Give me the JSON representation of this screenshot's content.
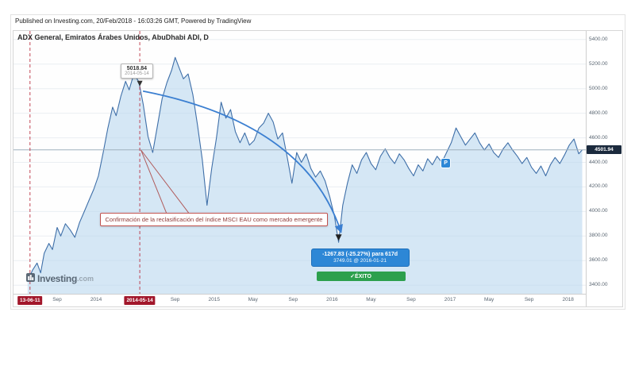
{
  "header": {
    "published": "Published on Investing.com, 20/Feb/2018 - 16:03:26 GMT, Powered by TradingView",
    "instrument": "ADX General, Emiratos Árabes Unidos, AbuDhabi ADI, D"
  },
  "watermark": {
    "name": "Investing",
    "tld": ".com"
  },
  "chart_data": {
    "type": "area",
    "title": "ADX General, Emiratos Árabes Unidos, AbuDhabi ADI, D",
    "xlabel": "",
    "ylabel": "",
    "grid": "horizontal",
    "legend": "none",
    "xlim": [
      2013.3,
      2018.15
    ],
    "ylim": [
      3330,
      5470
    ],
    "line_color": "#3f6fa8",
    "fill_color": "#b9d7ef",
    "y_ticks": [
      3400,
      3600,
      3800,
      4000,
      4200,
      4400,
      4600,
      4800,
      5000,
      5200,
      5400
    ],
    "y_tick_labels": [
      "3400.00",
      "3600.00",
      "3800.00",
      "4000.00",
      "4200.00",
      "4400.00",
      "4600.00",
      "4800.00",
      "5000.00",
      "5200.00",
      "5400.00"
    ],
    "x_ticks": [
      {
        "t": 2013.67,
        "label": "Sep"
      },
      {
        "t": 2014.0,
        "label": "2014"
      },
      {
        "t": 2014.67,
        "label": "Sep"
      },
      {
        "t": 2015.0,
        "label": "2015"
      },
      {
        "t": 2015.33,
        "label": "May"
      },
      {
        "t": 2015.67,
        "label": "Sep"
      },
      {
        "t": 2016.0,
        "label": "2016"
      },
      {
        "t": 2016.33,
        "label": "May"
      },
      {
        "t": 2016.67,
        "label": "Sep"
      },
      {
        "t": 2017.0,
        "label": "2017"
      },
      {
        "t": 2017.33,
        "label": "May"
      },
      {
        "t": 2017.67,
        "label": "Sep"
      },
      {
        "t": 2018.0,
        "label": "2018"
      }
    ],
    "x": [
      2013.42,
      2013.46,
      2013.5,
      2013.53,
      2013.56,
      2013.6,
      2013.63,
      2013.67,
      2013.7,
      2013.74,
      2013.78,
      2013.82,
      2013.86,
      2013.9,
      2013.94,
      2013.98,
      2014.02,
      2014.06,
      2014.1,
      2014.14,
      2014.17,
      2014.21,
      2014.25,
      2014.28,
      2014.32,
      2014.36,
      2014.37,
      2014.4,
      2014.44,
      2014.48,
      2014.52,
      2014.56,
      2014.6,
      2014.64,
      2014.67,
      2014.7,
      2014.74,
      2014.78,
      2014.82,
      2014.86,
      2014.9,
      2014.94,
      2014.98,
      2015.02,
      2015.06,
      2015.1,
      2015.14,
      2015.18,
      2015.22,
      2015.26,
      2015.3,
      2015.34,
      2015.38,
      2015.42,
      2015.46,
      2015.5,
      2015.54,
      2015.58,
      2015.62,
      2015.66,
      2015.7,
      2015.74,
      2015.78,
      2015.82,
      2015.86,
      2015.9,
      2015.94,
      2015.98,
      2016.02,
      2016.055,
      2016.09,
      2016.13,
      2016.17,
      2016.21,
      2016.25,
      2016.29,
      2016.33,
      2016.37,
      2016.41,
      2016.45,
      2016.49,
      2016.53,
      2016.57,
      2016.61,
      2016.65,
      2016.69,
      2016.73,
      2016.77,
      2016.81,
      2016.85,
      2016.89,
      2016.93,
      2016.97,
      2017.01,
      2017.05,
      2017.09,
      2017.13,
      2017.17,
      2017.21,
      2017.25,
      2017.29,
      2017.33,
      2017.37,
      2017.41,
      2017.45,
      2017.49,
      2017.53,
      2017.57,
      2017.61,
      2017.65,
      2017.69,
      2017.73,
      2017.77,
      2017.81,
      2017.85,
      2017.89,
      2017.93,
      2017.97,
      2018.01,
      2018.05,
      2018.09,
      2018.12
    ],
    "values": [
      3430,
      3520,
      3580,
      3500,
      3660,
      3740,
      3690,
      3870,
      3800,
      3900,
      3850,
      3790,
      3910,
      4000,
      4090,
      4180,
      4290,
      4480,
      4680,
      4850,
      4780,
      4940,
      5060,
      4990,
      5120,
      5060,
      5019,
      4870,
      4610,
      4480,
      4700,
      4920,
      5050,
      5150,
      5255,
      5180,
      5080,
      5120,
      4950,
      4700,
      4420,
      4050,
      4350,
      4600,
      4890,
      4760,
      4830,
      4650,
      4560,
      4640,
      4540,
      4580,
      4680,
      4720,
      4800,
      4730,
      4590,
      4640,
      4440,
      4230,
      4480,
      4400,
      4470,
      4350,
      4280,
      4330,
      4250,
      4120,
      3960,
      3749,
      4050,
      4230,
      4380,
      4310,
      4420,
      4480,
      4390,
      4340,
      4450,
      4510,
      4440,
      4390,
      4470,
      4420,
      4350,
      4290,
      4380,
      4330,
      4430,
      4380,
      4450,
      4400,
      4480,
      4560,
      4680,
      4610,
      4540,
      4590,
      4640,
      4560,
      4500,
      4550,
      4480,
      4440,
      4510,
      4560,
      4500,
      4450,
      4390,
      4440,
      4360,
      4310,
      4370,
      4290,
      4380,
      4440,
      4390,
      4460,
      4540,
      4590,
      4470,
      4502
    ],
    "current_price": {
      "value": 4501.94,
      "label": "4501.94",
      "color": "#1b2a3d"
    },
    "event_lines": [
      {
        "t": 2013.44,
        "date_label": "13-06-11",
        "color": "#b82737"
      },
      {
        "t": 2014.37,
        "date_label": "2014-05-14",
        "color": "#b82737"
      }
    ],
    "peak_callout": {
      "t": 2014.37,
      "price": 5018.84,
      "price_label": "5018.84",
      "date_label": "2014-05-14"
    },
    "trough": {
      "t": 2016.055,
      "price": 3749.01
    },
    "trend_arrow": {
      "color": "#3b7fd1"
    },
    "measure_tooltip": {
      "line1": "-1267.83 (-25.27%) para 617d",
      "line2": "3749.01 @ 2016-01-21",
      "success_label": "✓ÉXITO",
      "bg": "#2d87d6",
      "success_bg": "#2ca04d"
    },
    "annotation_box": {
      "text": "Confirmación de la reclasificación del índice MSCI EAU como mercado emergente",
      "anchor_t": 2014.03,
      "anchor_price": 3990,
      "pointer_from": {
        "t": 2014.38,
        "price": 4500
      }
    },
    "flag": {
      "label": "P",
      "t": 2016.96,
      "price": 4390,
      "bg": "#2d87d6"
    }
  }
}
